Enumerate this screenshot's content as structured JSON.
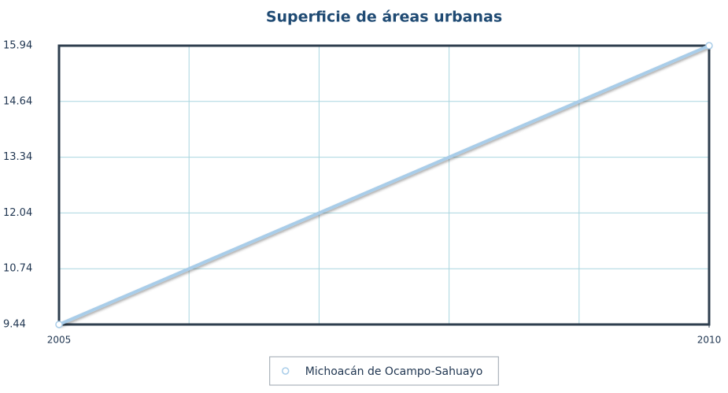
{
  "chart_data": {
    "type": "line",
    "title": "Superficie de áreas urbanas",
    "x": [
      2005,
      2010
    ],
    "series": [
      {
        "name": "Michoacán de Ocampo-Sahuayo",
        "color": "#a9cde9",
        "values": [
          9.44,
          15.94
        ]
      }
    ],
    "xlim": [
      2005,
      2010
    ],
    "xticks": [
      2005,
      2010
    ],
    "xgrid": [
      2006,
      2007,
      2008,
      2009
    ],
    "ylim": [
      9.44,
      15.94
    ],
    "yticks": [
      9.44,
      10.74,
      12.04,
      13.34,
      14.64,
      15.94
    ],
    "grid": true,
    "legend": "bottom"
  }
}
